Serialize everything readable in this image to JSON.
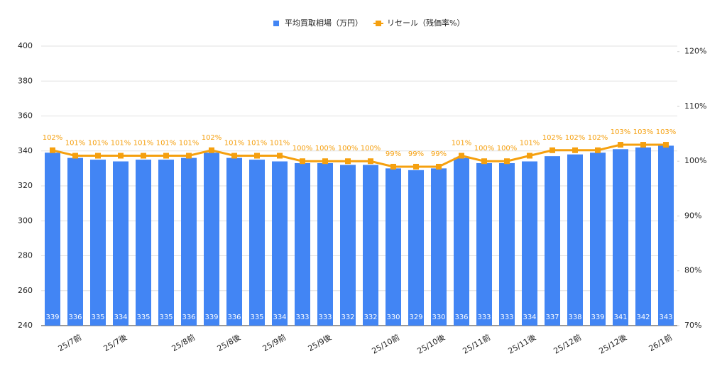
{
  "chart_data": {
    "type": "bar-line",
    "categories": [
      null,
      "25/7前",
      null,
      "25/7後",
      null,
      null,
      "25/8前",
      null,
      "25/8後",
      null,
      "25/9前",
      null,
      "25/9後",
      null,
      null,
      "25/10前",
      null,
      "25/10後",
      null,
      "25/11前",
      null,
      "25/11後",
      null,
      "25/12前",
      null,
      "25/12後",
      null,
      "26/1前"
    ],
    "series": [
      {
        "name": "平均買取相場（万円）",
        "color": "#4285f4",
        "kind": "bar",
        "values": [
          339,
          336,
          335,
          334,
          335,
          335,
          336,
          339,
          336,
          335,
          334,
          333,
          333,
          332,
          332,
          330,
          329,
          330,
          336,
          333,
          333,
          334,
          337,
          338,
          339,
          341,
          342,
          343
        ]
      },
      {
        "name": "リセール（残価率%）",
        "color": "#f5a00f",
        "kind": "line",
        "axis": "y2",
        "values": [
          102,
          101,
          101,
          101,
          101,
          101,
          101,
          102,
          101,
          101,
          101,
          100,
          100,
          100,
          100,
          99,
          99,
          99,
          101,
          100,
          100,
          101,
          102,
          102,
          102,
          103,
          103,
          103
        ],
        "value_labels": [
          "102%",
          "101%",
          "101%",
          "101%",
          "101%",
          "101%",
          "101%",
          "102%",
          "101%",
          "101%",
          "101%",
          "100%",
          "100%",
          "100%",
          "100%",
          "99%",
          "99%",
          "99%",
          "101%",
          "100%",
          "100%",
          "101%",
          "102%",
          "102%",
          "102%",
          "103%",
          "103%",
          "103%"
        ]
      }
    ],
    "ylim": [
      240,
      400
    ],
    "yticks": [
      240,
      260,
      280,
      300,
      320,
      340,
      360,
      380,
      400
    ],
    "y2lim": [
      70,
      121
    ],
    "y2ticks": [
      {
        "value": 70,
        "label": "70%"
      },
      {
        "value": 80,
        "label": "80%"
      },
      {
        "value": 90,
        "label": "90%"
      },
      {
        "value": 100,
        "label": "100%"
      },
      {
        "value": 110,
        "label": "110%"
      },
      {
        "value": 120,
        "label": "120%"
      }
    ],
    "grid": true
  }
}
